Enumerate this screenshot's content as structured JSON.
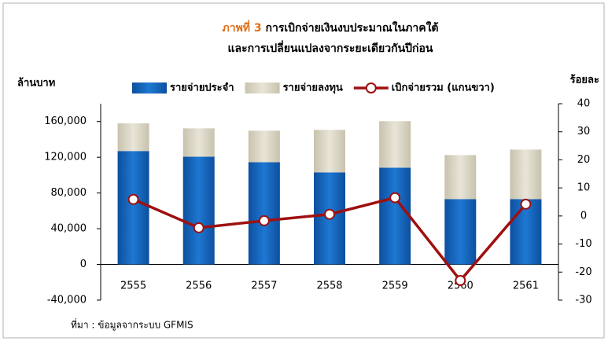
{
  "chart_data": {
    "type": "bar_line",
    "title_prefix": "ภาพที่ 3",
    "title": "การเบิกจ่ายเงินงบประมาณในภาคใต้",
    "subtitle": "และการเปลี่ยนแปลงจากระยะเดียวกันปีก่อน",
    "y_label": "ล้านบาท",
    "y2_label": "ร้อยละ",
    "source": "ที่มา : ข้อมูลจากระบบ GFMIS",
    "title_prefix_color": "#e0701c",
    "negative_tick_color": "#e00000",
    "categories": [
      "2555",
      "2556",
      "2557",
      "2558",
      "2559",
      "2560",
      "2561"
    ],
    "series": [
      {
        "name": "รายจ่ายประจำ",
        "color": "#1565c0",
        "stack": true,
        "values": [
          127000,
          120700,
          114500,
          103000,
          108400,
          73100,
          73100
        ]
      },
      {
        "name": "รายจ่ายลงทุน",
        "color": "#d9d4c2",
        "stack": true,
        "values": [
          31000,
          31700,
          35300,
          47700,
          52000,
          49400,
          55500
        ]
      },
      {
        "name": "เบิกจ่ายรวม (แกนขวา)",
        "color": "#9e1010",
        "axis": "y2",
        "values": [
          5.9,
          -4.2,
          -1.7,
          0.6,
          6.5,
          -23,
          4.2
        ]
      }
    ],
    "ylim": [
      -40000,
      180000
    ],
    "yticks": [
      {
        "value": -40000,
        "label": "-40,000"
      },
      0,
      {
        "value": 40000,
        "label": "40,000"
      },
      {
        "value": 80000,
        "label": "80,000"
      },
      {
        "value": 120000,
        "label": "120,000"
      },
      {
        "value": 160000,
        "label": "160,000"
      }
    ],
    "y2lim": [
      -30,
      40
    ],
    "y2ticks": [
      -30,
      -20,
      -10,
      0,
      10,
      20,
      30,
      40
    ]
  }
}
